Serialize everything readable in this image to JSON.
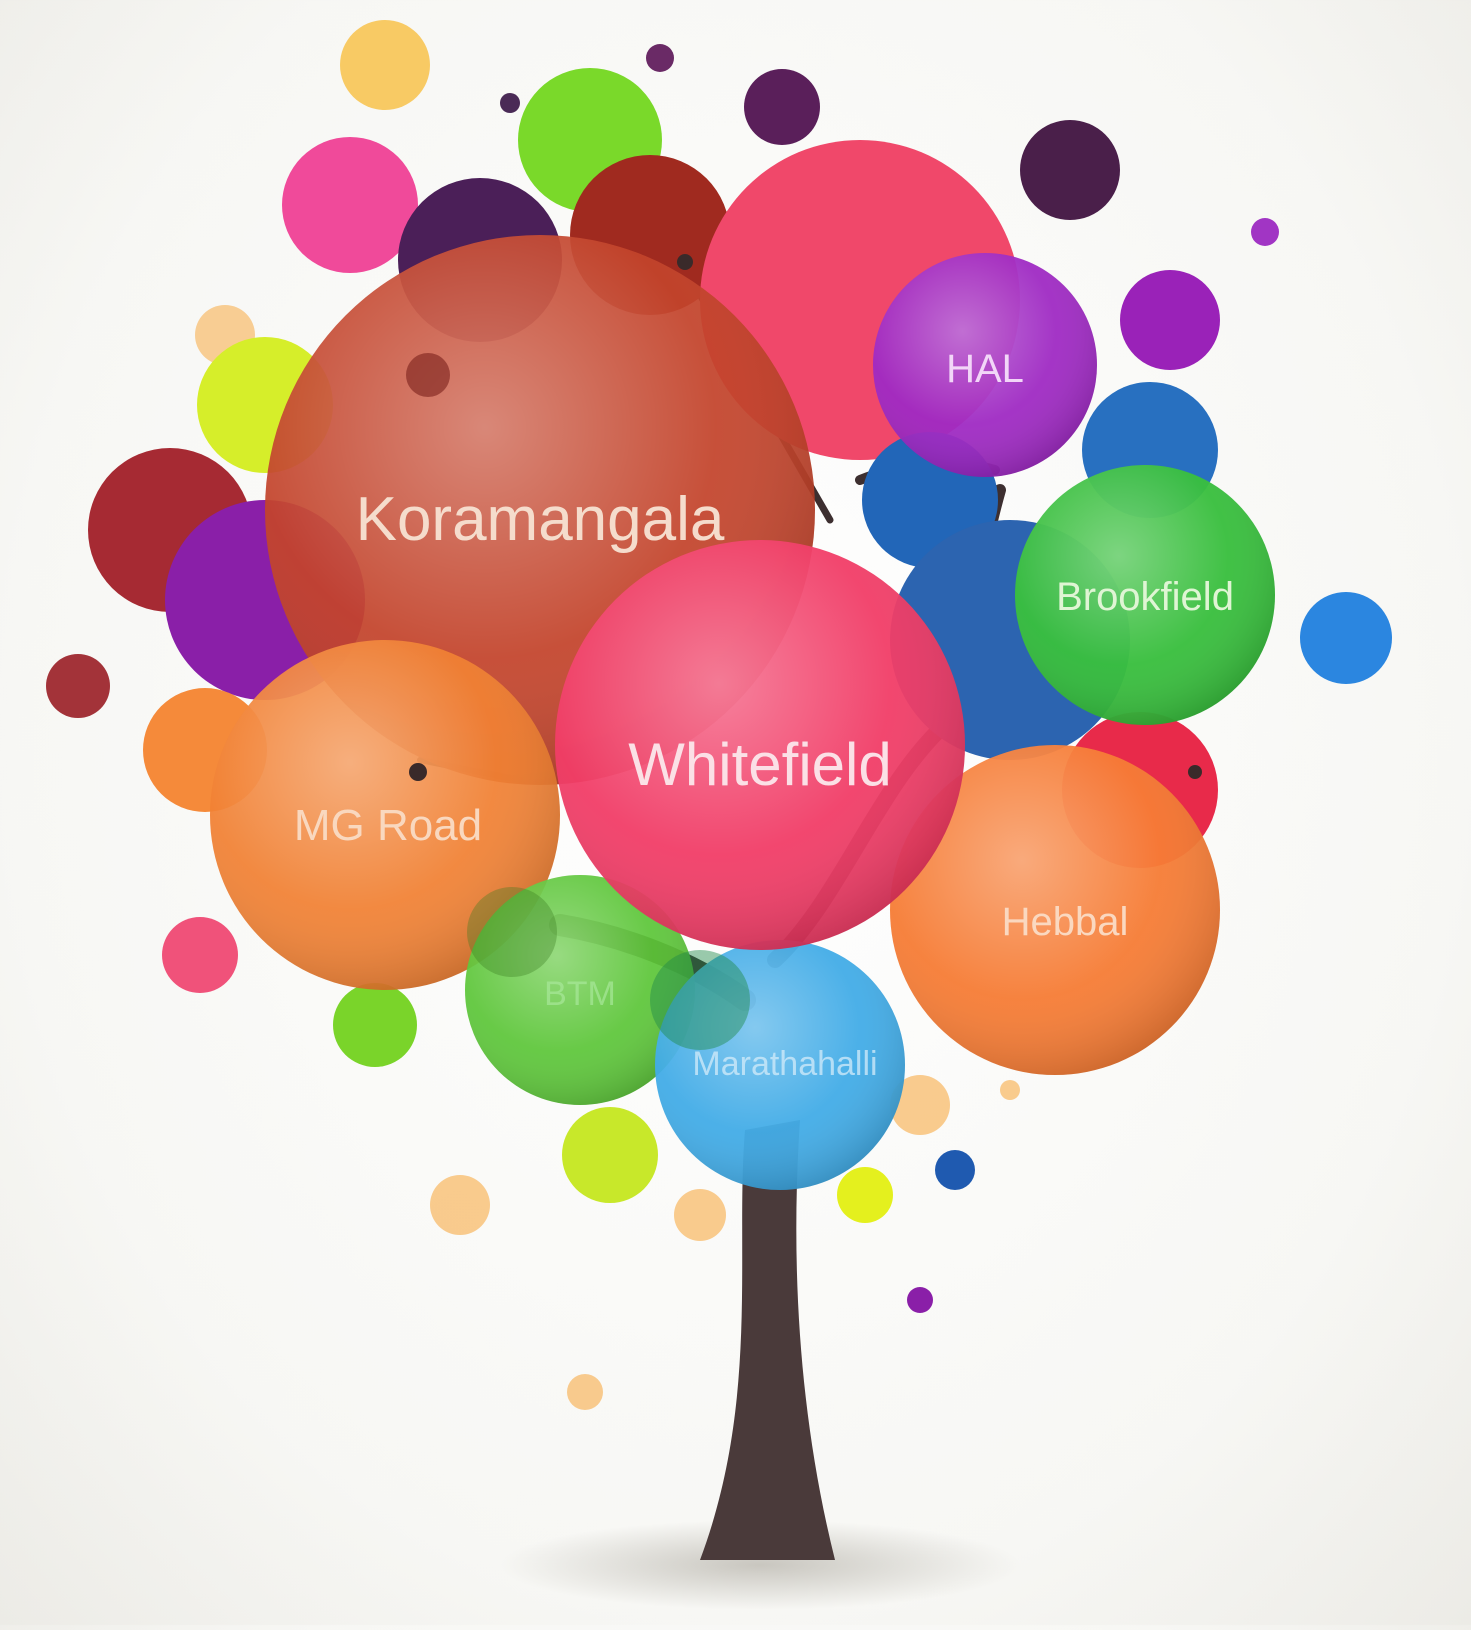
{
  "diagram": {
    "type": "bubble-tree",
    "labels": {
      "koramangala": "Koramangala",
      "whitefield": "Whitefield",
      "mg_road": "MG Road",
      "hal": "HAL",
      "brookfield": "Brookfield",
      "hebbal": "Hebbal",
      "btm": "BTM",
      "marathahalli": "Marathahalli"
    },
    "colors": {
      "koramangala": "#c0391f",
      "whitefield": "#f0335f",
      "mg_road": "#f07a28",
      "hal": "#9a1fc0",
      "brookfield": "#2fbb34",
      "hebbal": "#f5752a",
      "btm": "#53c22c",
      "marathahalli": "#38a8e6",
      "trunk": "#4a3a3a",
      "label_text": "#f5e6dc"
    }
  }
}
